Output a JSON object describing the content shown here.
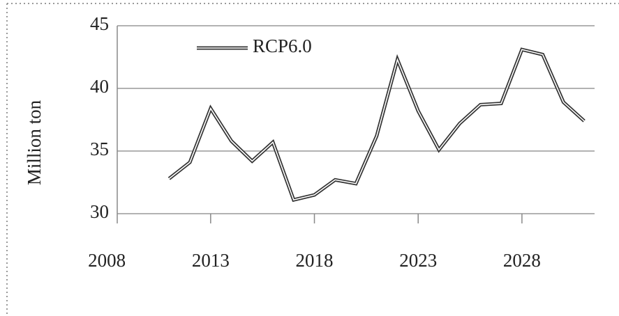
{
  "chart_data": {
    "type": "line",
    "ylabel": "Million ton",
    "x": [
      2011,
      2012,
      2013,
      2014,
      2015,
      2016,
      2017,
      2018,
      2019,
      2020,
      2021,
      2022,
      2023,
      2024,
      2025,
      2026,
      2027,
      2028,
      2029,
      2030,
      2031
    ],
    "series": [
      {
        "name": "RCP6.0",
        "color": "#333333",
        "values": [
          32.8,
          34.1,
          38.4,
          35.8,
          34.2,
          35.7,
          31.1,
          31.5,
          32.7,
          32.4,
          36.2,
          42.3,
          38.2,
          35.1,
          37.2,
          38.7,
          38.8,
          43.1,
          42.7,
          38.9,
          37.4
        ]
      }
    ],
    "xlim": [
      2008.5,
      2031.5
    ],
    "xticks": [
      2008,
      2013,
      2018,
      2023,
      2028
    ],
    "ylim": [
      30,
      45
    ],
    "yticks": [
      30,
      35,
      40,
      45
    ],
    "grid": true,
    "legend": "top-left"
  }
}
